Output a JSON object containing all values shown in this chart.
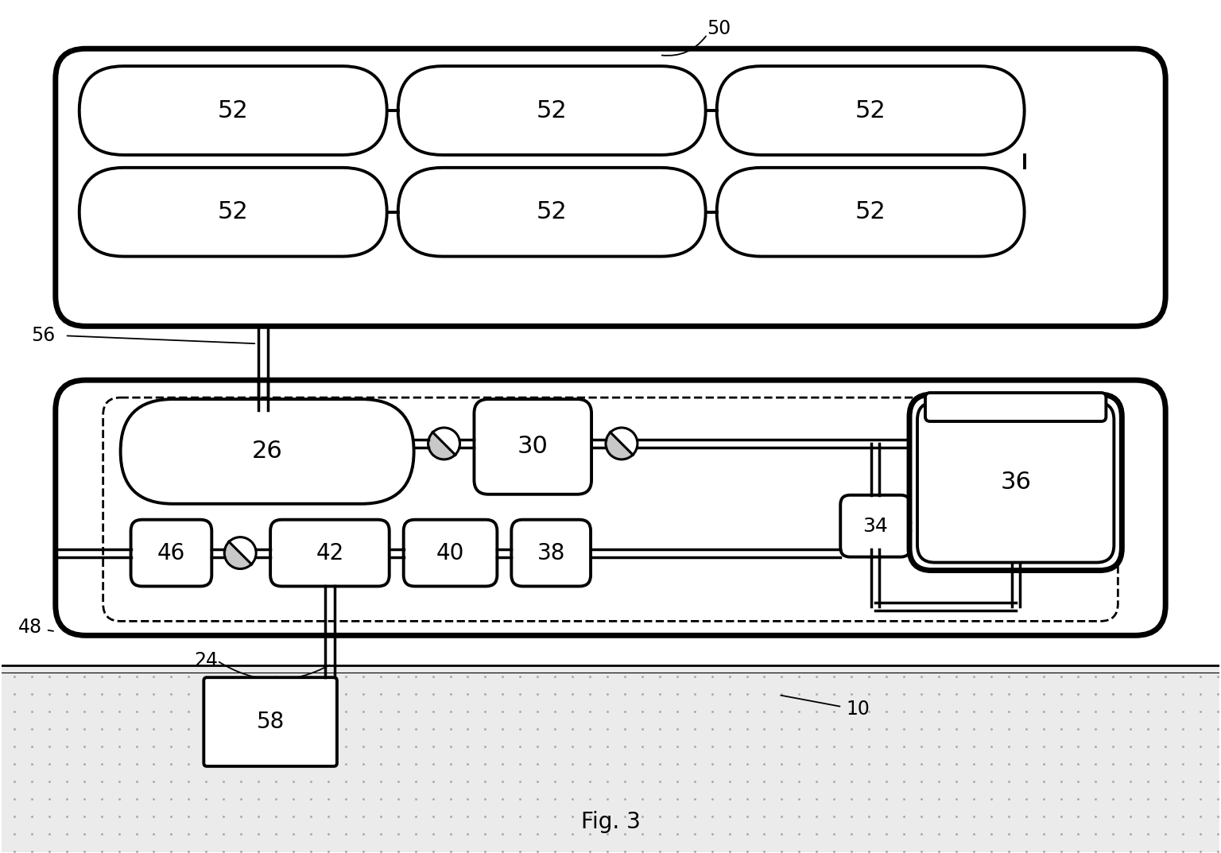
{
  "bg_color": "#ffffff",
  "fig_width": 15.36,
  "fig_height": 10.73,
  "title": "Fig. 3"
}
